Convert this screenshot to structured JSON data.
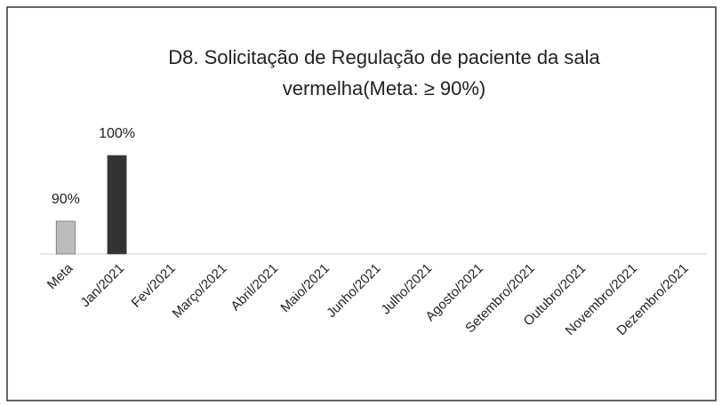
{
  "chart_data": {
    "type": "bar",
    "title": [
      "D8. Solicitação de Regulação de paciente da sala",
      "vermelha(Meta: ≥ 90%)"
    ],
    "categories": [
      "Meta",
      "Jan/2021",
      "Fev/2021",
      "Março/2021",
      "Abril/2021",
      "Maio/2021",
      "Junho/2021",
      "Julho/2021",
      "Agosto/2021",
      "Setembro/2021",
      "Outubro/2021",
      "Novembro/2021",
      "Dezembro/2021"
    ],
    "values": [
      90,
      100,
      null,
      null,
      null,
      null,
      null,
      null,
      null,
      null,
      null,
      null,
      null
    ],
    "value_labels": [
      "90%",
      "100%",
      null,
      null,
      null,
      null,
      null,
      null,
      null,
      null,
      null,
      null,
      null
    ],
    "colors": [
      "#bcbcbc",
      "#333333",
      null,
      null,
      null,
      null,
      null,
      null,
      null,
      null,
      null,
      null,
      null
    ],
    "ylim": [
      85,
      100
    ]
  }
}
